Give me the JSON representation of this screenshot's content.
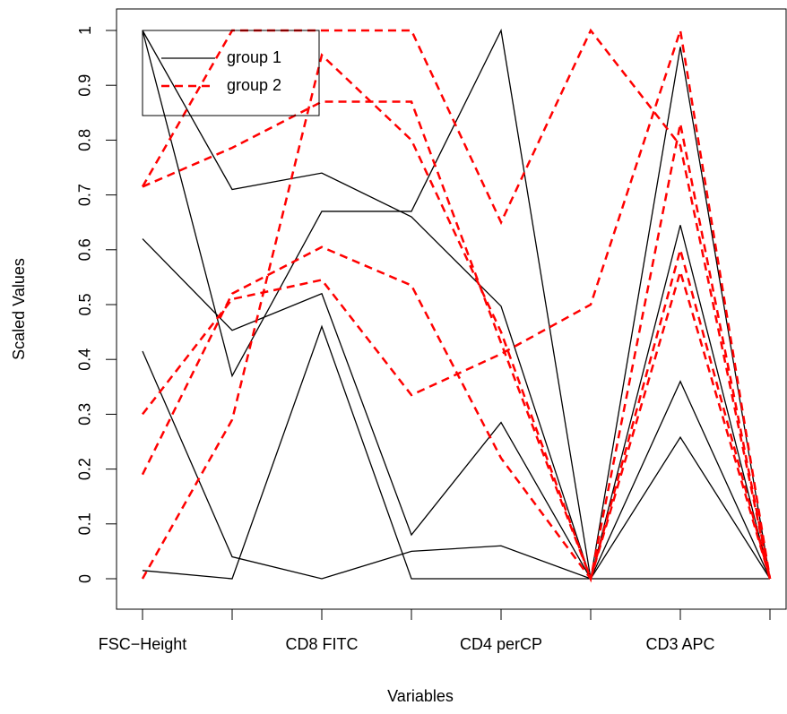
{
  "chart_data": {
    "type": "parallel",
    "x_label": "Variables",
    "y_label": "Scaled Values",
    "categories": [
      "FSC−Height",
      null,
      "CD8 FITC",
      null,
      "CD4 perCP",
      null,
      "CD3 APC",
      null
    ],
    "ylim": [
      0,
      1
    ],
    "yticks": [
      0,
      0.1,
      0.2,
      0.3,
      0.4,
      0.5,
      0.6,
      0.7,
      0.8,
      0.9,
      1
    ],
    "legend": "top-left",
    "series": [
      {
        "name": "group 1",
        "color": "#000000",
        "dashed": false,
        "lines": [
          [
            1.0,
            0.71,
            0.74,
            0.66,
            0.497,
            0,
            0.645,
            0
          ],
          [
            1.0,
            0.37,
            0.67,
            0.67,
            1.0,
            0,
            0.97,
            0
          ],
          [
            0.62,
            0.453,
            0.52,
            0.08,
            0.285,
            0,
            0.36,
            0
          ],
          [
            0.415,
            0.04,
            0,
            0.05,
            0.06,
            0,
            0.258,
            0
          ],
          [
            0.015,
            0,
            0.46,
            0,
            0,
            0,
            0,
            0
          ]
        ]
      },
      {
        "name": "group 2",
        "color": "#ff0000",
        "dashed": true,
        "lines": [
          [
            0.715,
            1.0,
            1.0,
            1.0,
            0.65,
            1.0,
            0.79,
            0
          ],
          [
            0.715,
            0.786,
            0.87,
            0.87,
            0.43,
            0,
            0.83,
            0
          ],
          [
            0.3,
            0.51,
            0.545,
            0.335,
            0.41,
            0.5,
            1.0,
            0
          ],
          [
            0.19,
            0.52,
            0.605,
            0.535,
            0.22,
            0,
            0.6,
            0
          ],
          [
            0,
            0.29,
            0.955,
            0.8,
            0.45,
            0,
            0.56,
            0
          ]
        ]
      }
    ]
  }
}
